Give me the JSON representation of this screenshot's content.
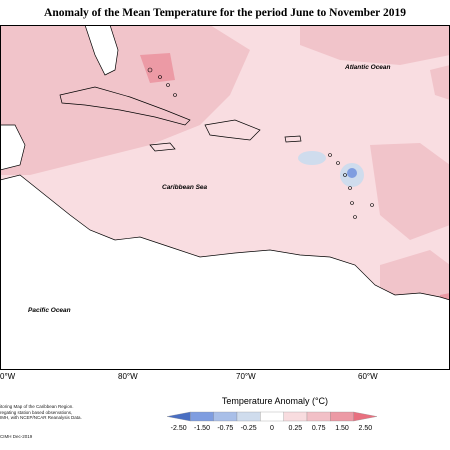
{
  "title": "Anomaly of the Mean Temperature for the period June to November 2019",
  "labels": {
    "atlantic": "Atlantic Ocean",
    "caribbean": "Caribbean Sea",
    "pacific": "Pacific Ocean"
  },
  "longitudes": [
    "0°W",
    "80°W",
    "70°W",
    "60°W"
  ],
  "notes": [
    "itoring Map of the Caribbean Region.",
    "regating station based observations,",
    "IMH, with NCEP/NCAR Reanalysis Data."
  ],
  "credit": "CIMH Dec-2019",
  "legend": {
    "title": "Temperature Anomaly (°C)",
    "ticks": [
      "-2.50",
      "-1.50",
      "-0.75",
      "-0.25",
      "0",
      "0.25",
      "0.75",
      "1.50",
      "2.50"
    ],
    "colors": [
      "#4a6fc2",
      "#7f9de0",
      "#a9bfe8",
      "#cfdced",
      "#ffffff",
      "#f8dcdf",
      "#f2c0c7",
      "#ec9aa5",
      "#e8707f"
    ]
  },
  "colors": {
    "base": "#f9dde1",
    "warm": "#f1c4ca",
    "hot": "#ea9aa4",
    "cool": "#cfdced",
    "land": "#ffffff"
  }
}
